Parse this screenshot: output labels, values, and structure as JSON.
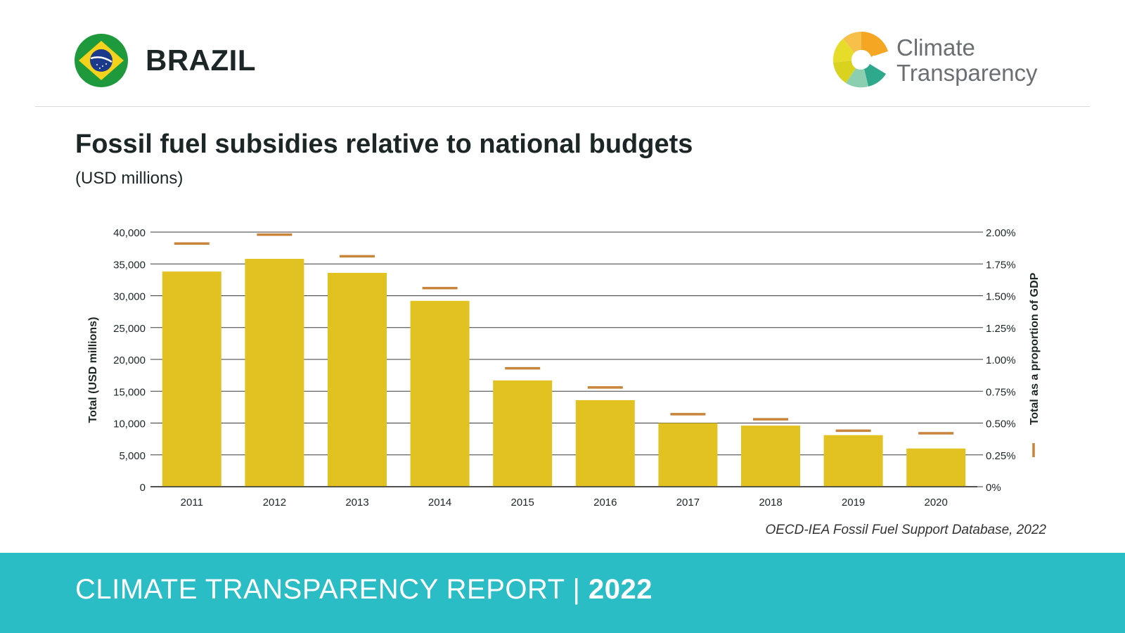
{
  "header": {
    "country": "BRAZIL",
    "brand_line1": "Climate",
    "brand_line2": "Transparency"
  },
  "title": "Fossil fuel subsidies relative to national budgets",
  "subtitle": "(USD millions)",
  "source": "OECD-IEA Fossil Fuel Support Database, 2022",
  "footer": {
    "report_label": "CLIMATE TRANSPARENCY REPORT",
    "separator": "|",
    "year": "2022"
  },
  "colors": {
    "bar": "#e1c220",
    "marker": "#c8843b",
    "grid": "#3a3a3a",
    "footer": "#2bbdc5"
  },
  "chart_data": {
    "type": "bar",
    "categories": [
      "2011",
      "2012",
      "2013",
      "2014",
      "2015",
      "2016",
      "2017",
      "2018",
      "2019",
      "2020"
    ],
    "series": [
      {
        "values": [
          33800,
          35800,
          33600,
          29200,
          16700,
          13600,
          10000,
          9600,
          8100,
          6000
        ]
      },
      {
        "type": "marker",
        "axis": "right",
        "values": [
          1.91,
          1.98,
          1.81,
          1.56,
          0.93,
          0.78,
          0.57,
          0.53,
          0.44,
          0.42
        ]
      }
    ],
    "ylabel": "Total (USD millions)",
    "y2label": "Total as a proportion of GDP",
    "ylim": [
      0,
      40000
    ],
    "y2lim": [
      0,
      2.0
    ],
    "yticks": [
      "0",
      "5,000",
      "10,000",
      "15,000",
      "20,000",
      "25,000",
      "30,000",
      "35,000",
      "40,000"
    ],
    "y2ticks": [
      "0%",
      "0.25%",
      "0.50%",
      "0.75%",
      "1.00%",
      "1.25%",
      "1.50%",
      "1.75%",
      "2.00%"
    ],
    "grid": true
  }
}
